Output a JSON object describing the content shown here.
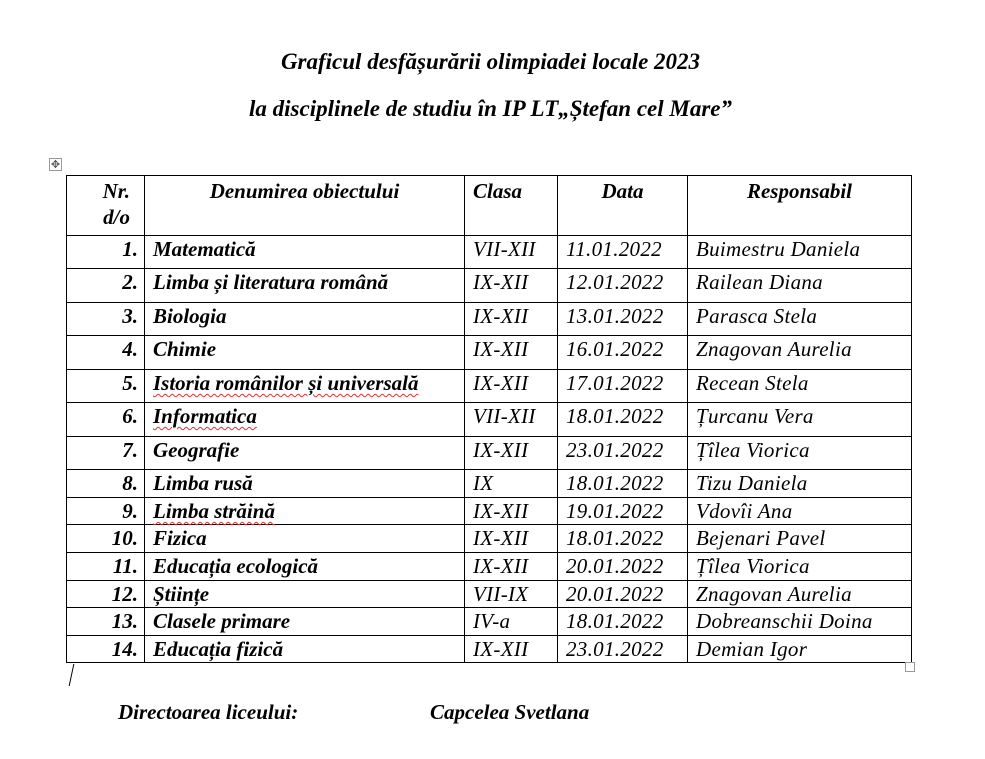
{
  "title_line1": "Graficul desfășurării olimpiadei locale 2023",
  "title_line2": "la disciplinele de studiu în IP LT„Ștefan cel Mare”",
  "table": {
    "headers": {
      "nr": "Nr. d/o",
      "subject": "Denumirea obiectului",
      "class": "Clasa",
      "date": "Data",
      "responsible": "Responsabil"
    },
    "rows": [
      {
        "nr": "1.",
        "subject": "Matematică",
        "class": "VII-XII",
        "date": "11.01.2022",
        "responsible": "Buimestru Daniela"
      },
      {
        "nr": "2.",
        "subject": "Limba și literatura română",
        "class": "IX-XII",
        "date": "12.01.2022",
        "responsible": "Railean Diana"
      },
      {
        "nr": "3.",
        "subject": "Biologia",
        "class": "IX-XII",
        "date": "13.01.2022",
        "responsible": "Parasca Stela"
      },
      {
        "nr": "4.",
        "subject": "Chimie",
        "class": "IX-XII",
        "date": "16.01.2022",
        "responsible": "Znagovan Aurelia"
      },
      {
        "nr": "5.",
        "subject": "Istoria românilor și universală",
        "class": "IX-XII",
        "date": "17.01.2022",
        "responsible": "Recean Stela",
        "spell": true
      },
      {
        "nr": "6.",
        "subject": "Informatica",
        "class": "VII-XII",
        "date": "18.01.2022",
        "responsible": "Țurcanu Vera",
        "spell": true
      },
      {
        "nr": "7.",
        "subject": "Geografie",
        "class": "IX-XII",
        "date": "23.01.2022",
        "responsible": "Țîlea Viorica"
      },
      {
        "nr": "8.",
        "subject": "Limba rusă",
        "class": "IX",
        "date": "18.01.2022",
        "responsible": "Tizu Daniela"
      },
      {
        "nr": "9.",
        "subject": "Limba străină",
        "class": "IX-XII",
        "date": "19.01.2022",
        "responsible": "Vdovîi Ana",
        "spell": true
      },
      {
        "nr": "10.",
        "subject": "Fizica",
        "class": "IX-XII",
        "date": "18.01.2022",
        "responsible": "Bejenari Pavel"
      },
      {
        "nr": "11.",
        "subject": "Educația ecologică",
        "class": "IX-XII",
        "date": "20.01.2022",
        "responsible": "Țîlea Viorica"
      },
      {
        "nr": "12.",
        "subject": "Științe",
        "class": "VII-IX",
        "date": "20.01.2022",
        "responsible": "Znagovan Aurelia"
      },
      {
        "nr": "13.",
        "subject": "Clasele primare",
        "class": "IV-a",
        "date": "18.01.2022",
        "responsible": "Dobreanschii Doina"
      },
      {
        "nr": "14.",
        "subject": "Educația fizică",
        "class": "IX-XII",
        "date": "23.01.2022",
        "responsible": "Demian Igor"
      }
    ]
  },
  "footer": {
    "role": "Directoarea liceului:",
    "name": "Capcelea Svetlana"
  },
  "colors": {
    "spellcheck_underline": "#e03030"
  },
  "icons": {
    "table_handle": "move-icon"
  }
}
